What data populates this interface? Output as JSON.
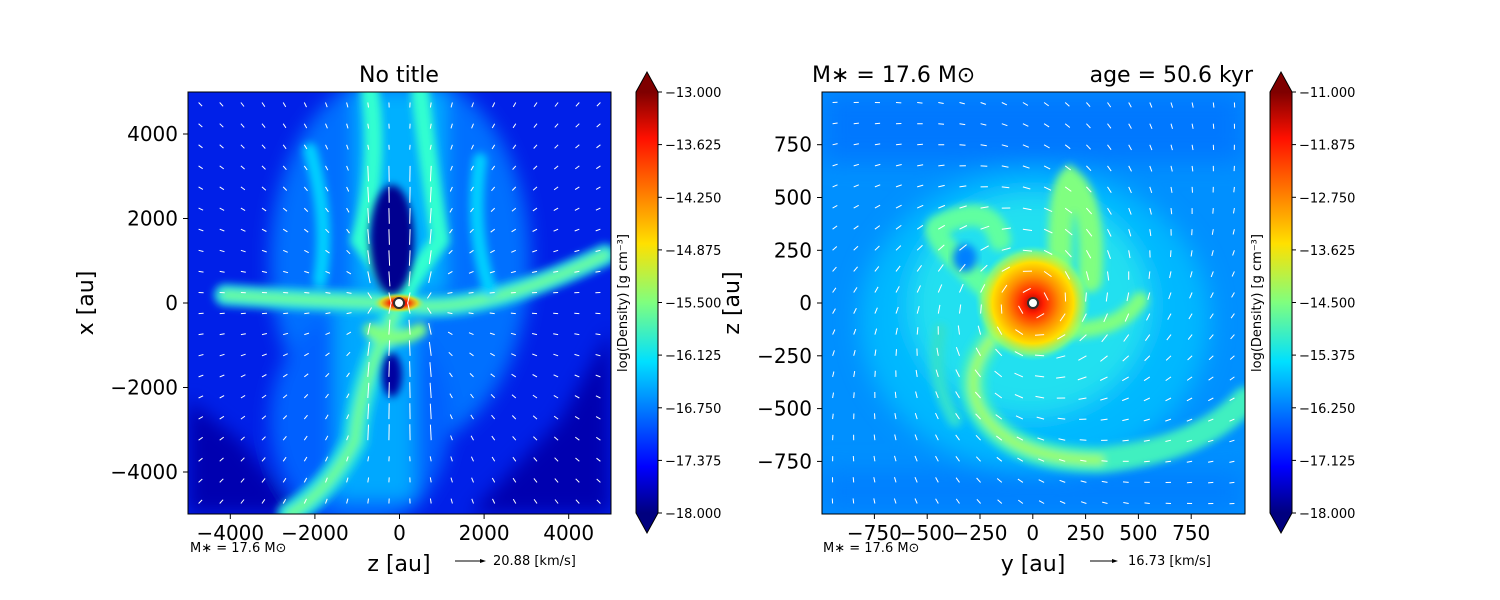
{
  "chart_data": [
    {
      "type": "heatmap",
      "title": "No title",
      "xlabel": "z [au]",
      "ylabel": "x [au]",
      "xlim": [
        -5000,
        5000
      ],
      "ylim": [
        -5000,
        5000
      ],
      "xticks": [
        "−4000",
        "−2000",
        "0",
        "2000",
        "4000"
      ],
      "yticks": [
        "4000",
        "2000",
        "0",
        "−2000",
        "−4000"
      ],
      "colorbar": {
        "label": "log(Density) [g cm⁻³]",
        "range": [
          -18.0,
          -13.0
        ],
        "ticks": [
          "−13.000",
          "−13.625",
          "−14.250",
          "−14.875",
          "−15.500",
          "−16.125",
          "−16.750",
          "−17.375",
          "−18.000"
        ]
      },
      "footnote": "M∗ = 17.6 M⊙",
      "velocity_key": "20.88 [km/s]",
      "velocity_key_value": 20.88,
      "structure": "bipolar cavity with filaments, star at origin"
    },
    {
      "type": "heatmap",
      "title_left": "M∗ = 17.6 M⊙",
      "title_right": "age = 50.6 kyr",
      "xlabel": "y [au]",
      "ylabel": "z [au]",
      "xlim": [
        -1000,
        1000
      ],
      "ylim": [
        -1000,
        1000
      ],
      "xticks": [
        "−750",
        "−500",
        "−250",
        "0",
        "250",
        "500",
        "750"
      ],
      "yticks": [
        "750",
        "500",
        "250",
        "0",
        "−250",
        "−500",
        "−750"
      ],
      "colorbar": {
        "label": "log(Density) [g cm⁻³]",
        "range": [
          -18.0,
          -11.0
        ],
        "ticks": [
          "−11.000",
          "−11.875",
          "−12.750",
          "−13.625",
          "−14.500",
          "−15.375",
          "−16.250",
          "−17.125",
          "−18.000"
        ]
      },
      "footnote": "M∗ = 17.6 M⊙",
      "velocity_key": "16.73 [km/s]",
      "velocity_key_value": 16.73,
      "structure": "spiral accretion disk around central star"
    }
  ]
}
